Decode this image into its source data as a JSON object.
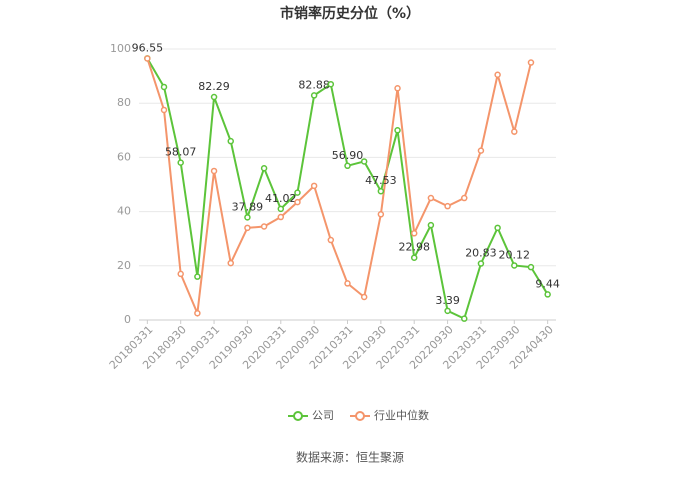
{
  "chart_data": {
    "type": "line",
    "title": "市销率历史分位（%）",
    "categories": [
      "20180331",
      null,
      "20180930",
      null,
      "20190331",
      null,
      "20190930",
      null,
      "20200331",
      null,
      "20200930",
      null,
      "20210331",
      null,
      "20210930",
      null,
      "20220331",
      null,
      "20220930",
      null,
      "20230331",
      null,
      "20230930",
      null,
      "20240430"
    ],
    "series": [
      {
        "name": "公司",
        "color": "#5cc43a",
        "values": [
          96.55,
          86,
          58.07,
          16,
          82.29,
          66,
          37.89,
          56,
          41.02,
          47,
          82.88,
          87,
          56.9,
          58.5,
          47.53,
          70,
          22.98,
          35,
          3.39,
          0.5,
          20.83,
          34,
          20.12,
          19.5,
          9.44
        ],
        "value_labels": [
          "96.55",
          null,
          "58.07",
          null,
          "82.29",
          null,
          "37.89",
          null,
          "41.02",
          null,
          "82.88",
          null,
          "56.90",
          null,
          "47.53",
          null,
          "22.98",
          null,
          "3.39",
          null,
          "20.83",
          null,
          "20.12",
          null,
          "9.44"
        ]
      },
      {
        "name": "行业中位数",
        "color": "#f4956b",
        "values": [
          96.5,
          77.5,
          17,
          2.5,
          55,
          21,
          34,
          34.5,
          38,
          43.5,
          49.5,
          29.5,
          13.5,
          8.5,
          39,
          85.5,
          32,
          45,
          42,
          45,
          62.5,
          90.5,
          69.5,
          95,
          null
        ]
      }
    ],
    "ylim": [
      0,
      100
    ],
    "yticks": [
      0,
      20,
      40,
      60,
      80,
      100
    ],
    "grid": true,
    "source": "数据来源：恒生聚源"
  }
}
